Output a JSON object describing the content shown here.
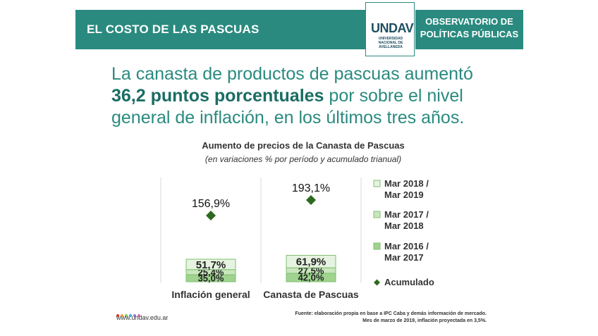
{
  "header": {
    "title": "EL COSTO DE LAS PASCUAS",
    "observatory_line1": "OBSERVATORIO DE",
    "observatory_line2": "POLÍTICAS PÚBLICAS",
    "logo_mark": "UNDAV",
    "logo_sub1": "UNIVERSIDAD",
    "logo_sub2": "NACIONAL DE",
    "logo_sub3": "AVELLANEDA"
  },
  "headline": {
    "line1": "La canasta de productos de pascuas aumentó",
    "highlight": "36,2 puntos porcentuales",
    "line2_rest": " por sobre el nivel",
    "line3": "general de inflación, en los últimos tres años."
  },
  "footer": {
    "url": "www.undav.edu.ar",
    "source_line1": "Fuente: elaboración propia en base a IPC Caba y demás información de mercado.",
    "source_line2": "Mes de marzo de 2019, inflación proyectada en 3,5%.",
    "dot_colors": [
      "#e5342c",
      "#f0a23a",
      "#8cc152",
      "#3bafda",
      "#967adc",
      "#e16ba6"
    ]
  },
  "colors": {
    "teal": "#2a8a7f",
    "period1": "#e6f3e0",
    "period2": "#c9e6be",
    "period3": "#9fd38f",
    "marker": "#2d6a1f"
  },
  "chart_data": {
    "type": "bar",
    "title": "Aumento de precios de la Canasta de Pascuas",
    "subtitle": "(en variaciones % por período y acumulado trianual)",
    "categories": [
      "Inflación general",
      "Canasta de Pascuas"
    ],
    "series": [
      {
        "name": "Mar 2016 / Mar 2017",
        "values": [
          35.0,
          42.0
        ],
        "labels": [
          "35,0%",
          "42,0%"
        ]
      },
      {
        "name": "Mar 2017 / Mar 2018",
        "values": [
          25.4,
          27.5
        ],
        "labels": [
          "25,4%",
          "27,5%"
        ]
      },
      {
        "name": "Mar 2018 / Mar 2019",
        "values": [
          51.7,
          61.9
        ],
        "labels": [
          "51,7%",
          "61,9%"
        ]
      }
    ],
    "accumulated": {
      "name": "Acumulado",
      "values": [
        156.9,
        193.1
      ],
      "labels": [
        "156,9%",
        "193,1%"
      ]
    },
    "legend": [
      {
        "name": "Mar 2018 /",
        "name2": "Mar 2019"
      },
      {
        "name": "Mar 2017 /",
        "name2": "Mar 2018"
      },
      {
        "name": "Mar 2016 /",
        "name2": "Mar 2017"
      },
      {
        "name": "Acumulado",
        "name2": ""
      }
    ],
    "legend_position": "right",
    "grid": false
  }
}
